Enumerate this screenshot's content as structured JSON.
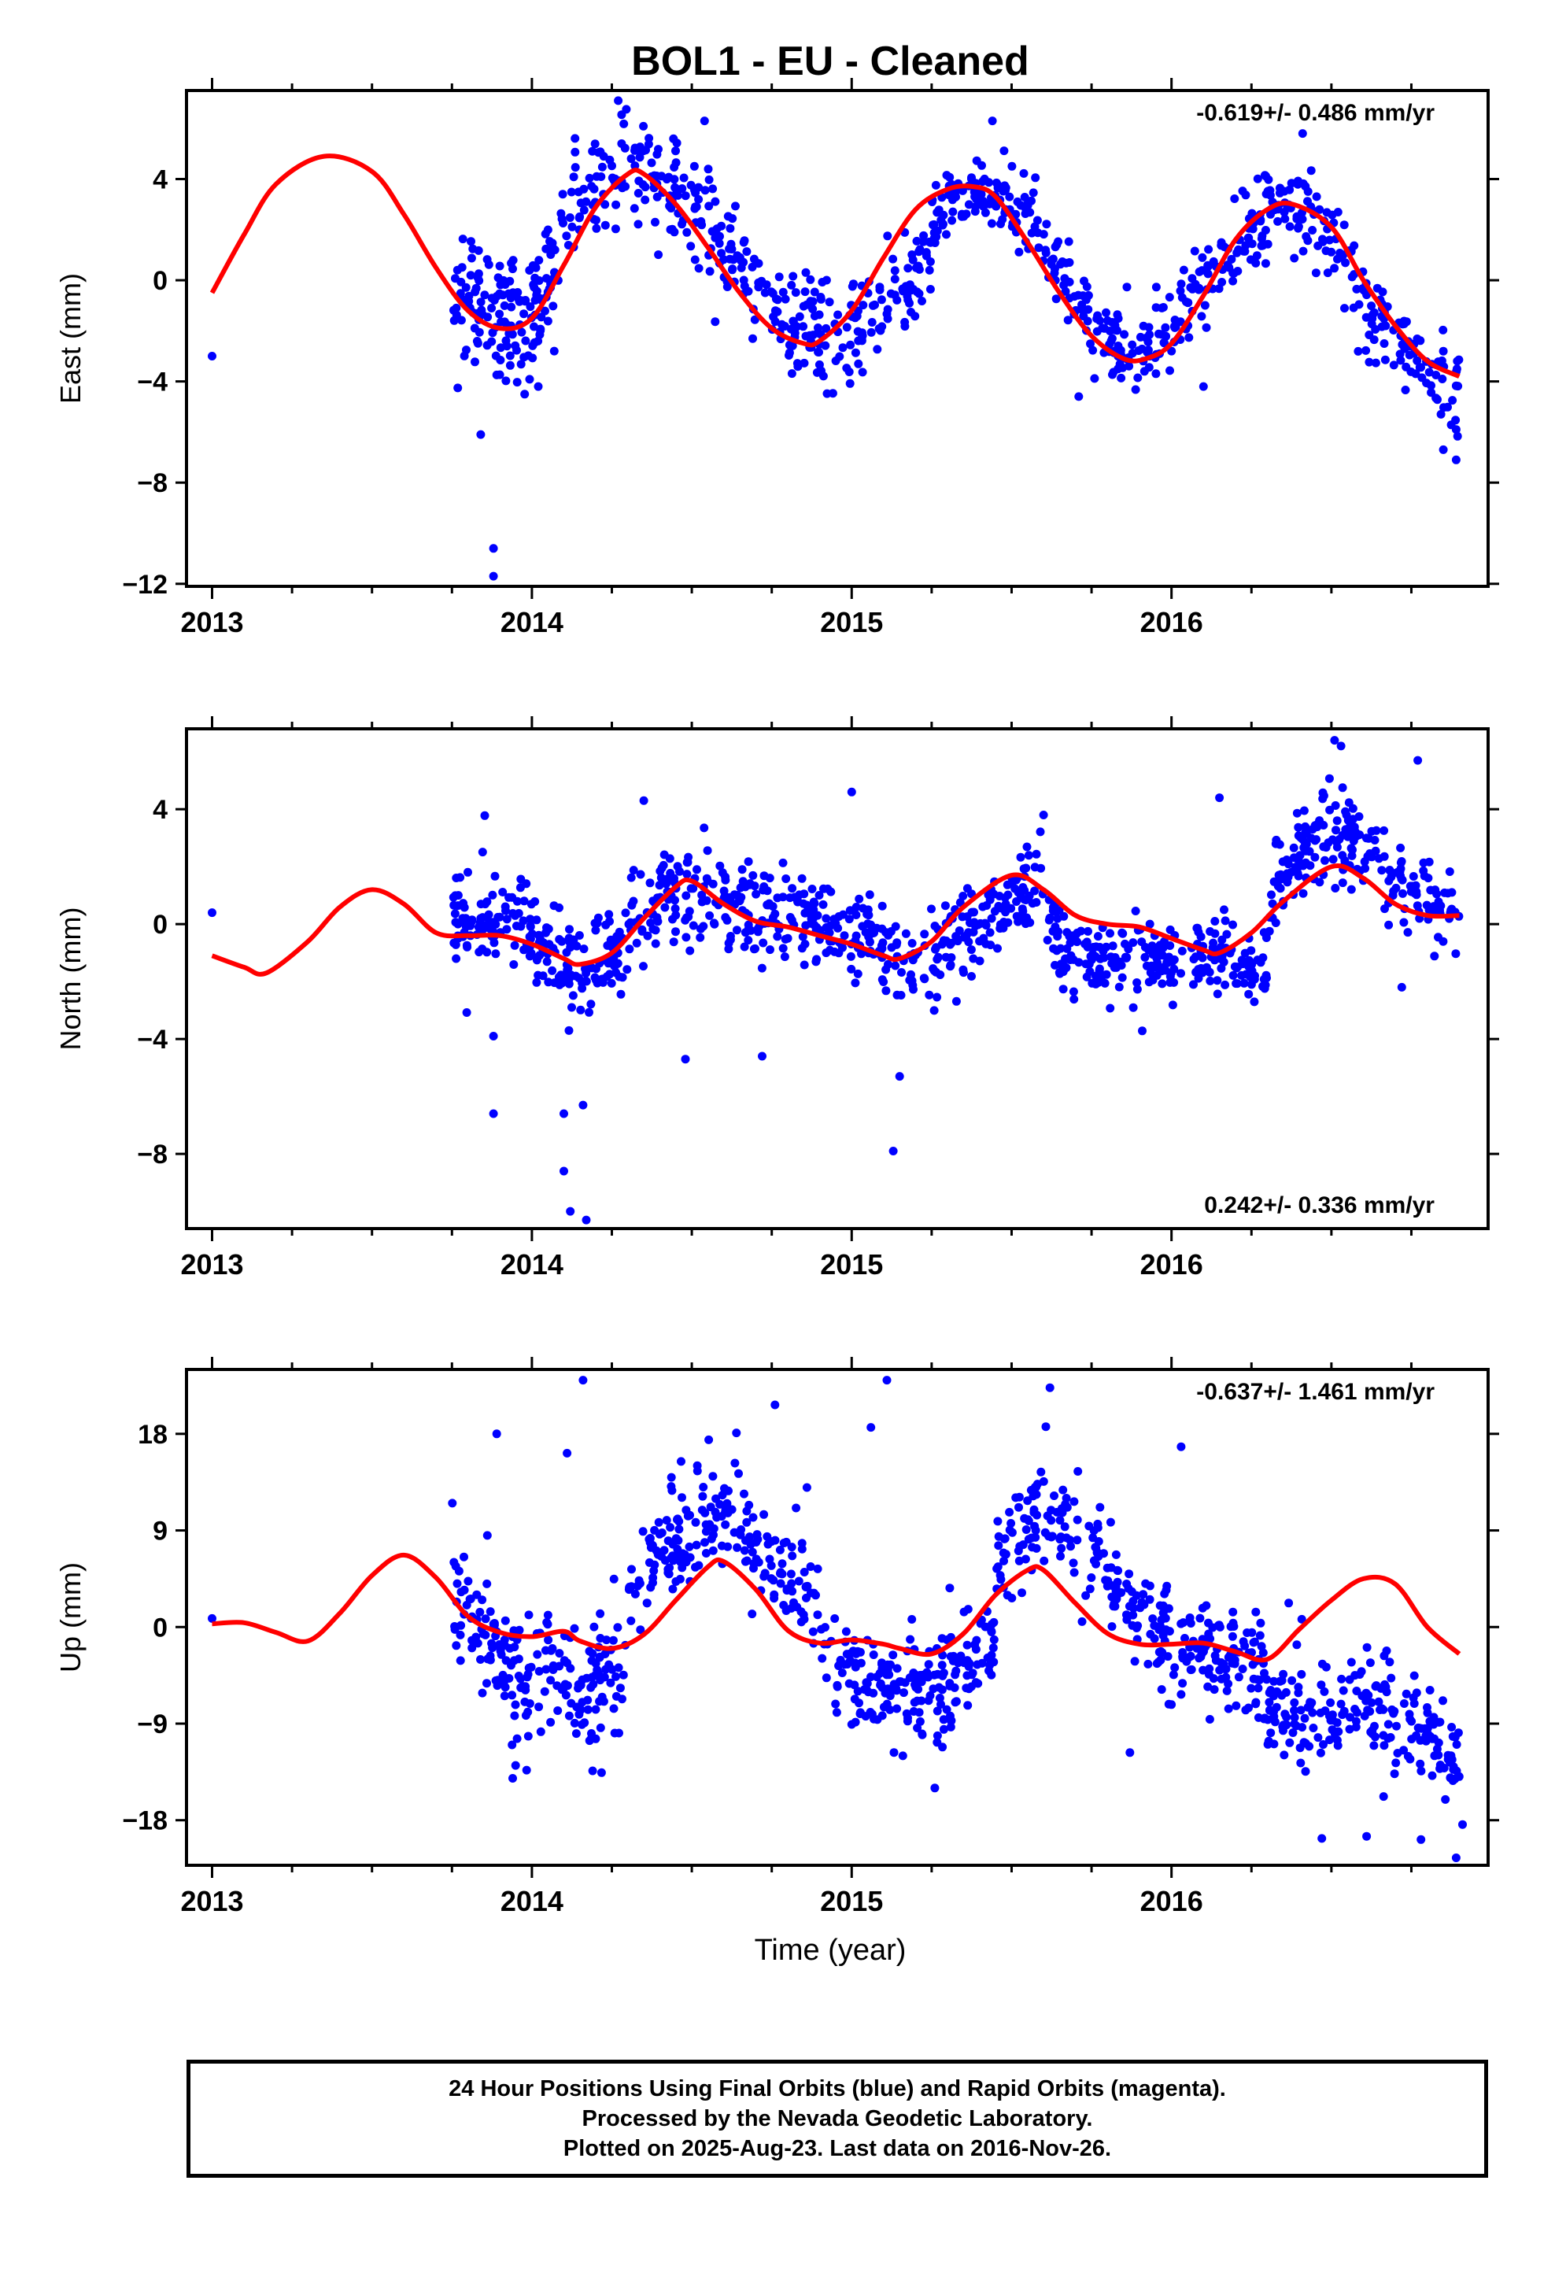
{
  "title": "BOL1  - EU - Cleaned",
  "xlabel": "Time (year)",
  "footer": {
    "line1": "24 Hour Positions Using Final Orbits (blue) and Rapid Orbits (magenta).",
    "line2": "Processed by the Nevada Geodetic Laboratory.",
    "line3": "Plotted on 2025-Aug-23. Last data on 2016-Nov-26."
  },
  "colors": {
    "points": "#0000ff",
    "model": "#ff0000",
    "axes": "#000000"
  },
  "chart_data": [
    {
      "type": "scatter",
      "component": "East",
      "ylabel": "East (mm)",
      "rate_text": "-0.619+/- 0.486 mm/yr",
      "rate_position": "top-right",
      "xlim": [
        2012.92,
        2016.99
      ],
      "ylim": [
        -12.1,
        7.5
      ],
      "xticks": [
        2013,
        2014,
        2015,
        2016
      ],
      "yticks": [
        4,
        0,
        -4,
        -8,
        -12
      ],
      "model_curve": {
        "x": [
          2013.0,
          2013.1,
          2013.2,
          2013.35,
          2013.5,
          2013.6,
          2013.7,
          2013.8,
          2013.9,
          2014.0,
          2014.1,
          2014.2,
          2014.3,
          2014.35,
          2014.45,
          2014.55,
          2014.65,
          2014.75,
          2014.85,
          2014.9,
          2015.0,
          2015.1,
          2015.2,
          2015.3,
          2015.38,
          2015.45,
          2015.55,
          2015.65,
          2015.75,
          2015.85,
          2015.92,
          2016.0,
          2016.1,
          2016.2,
          2016.3,
          2016.38,
          2016.5,
          2016.6,
          2016.7,
          2016.8,
          2016.9
        ],
        "y": [
          -0.5,
          1.8,
          3.8,
          4.9,
          4.3,
          2.6,
          0.5,
          -1.2,
          -1.9,
          -1.5,
          0.6,
          2.9,
          4.2,
          4.2,
          3.0,
          1.3,
          -0.5,
          -1.9,
          -2.5,
          -2.4,
          -1.2,
          0.9,
          2.8,
          3.6,
          3.7,
          3.3,
          1.5,
          -0.5,
          -2.2,
          -3.1,
          -3.1,
          -2.5,
          -0.6,
          1.6,
          2.8,
          3.0,
          2.1,
          0.0,
          -1.8,
          -3.2,
          -3.8
        ]
      },
      "series": [
        {
          "name": "",
          "segments": [
            {
              "x_range": [
                2013.75,
                2014.0
              ],
              "center": [
                -0.5,
                -1.9
              ],
              "spread": 1.8,
              "count": 110
            },
            {
              "x_range": [
                2014.0,
                2014.6
              ],
              "center": [
                -1.5,
                3.5,
                4.5,
                3.5,
                1.5
              ],
              "spread": 1.5,
              "count": 200
            },
            {
              "x_range": [
                2014.6,
                2015.25
              ],
              "center": [
                1.0,
                -1.0,
                -2.3,
                -1.3,
                1.5
              ],
              "spread": 1.3,
              "count": 200
            },
            {
              "x_range": [
                2015.25,
                2015.95
              ],
              "center": [
                2.5,
                3.6,
                2.8,
                0.0,
                -2.5,
                -3.1
              ],
              "spread": 1.0,
              "count": 220
            },
            {
              "x_range": [
                2015.95,
                2016.9
              ],
              "center": [
                -2.5,
                -0.5,
                1.8,
                3.0,
                1.5,
                -1.0,
                -3.2,
                -4.0
              ],
              "spread": 1.2,
              "count": 280
            }
          ],
          "outliers": [
            {
              "x": 2013.0,
              "y": -3.0
            },
            {
              "x": 2013.88,
              "y": -10.6
            },
            {
              "x": 2013.88,
              "y": -11.7
            },
            {
              "x": 2013.84,
              "y": -6.1
            },
            {
              "x": 2014.07,
              "y": -2.8
            },
            {
              "x": 2014.02,
              "y": -4.2
            },
            {
              "x": 2014.27,
              "y": 7.1
            },
            {
              "x": 2014.54,
              "y": 6.3
            },
            {
              "x": 2015.44,
              "y": 6.3
            },
            {
              "x": 2016.41,
              "y": 5.8
            },
            {
              "x": 2016.85,
              "y": -6.7
            },
            {
              "x": 2016.89,
              "y": -7.1
            },
            {
              "x": 2016.89,
              "y": -5.9
            },
            {
              "x": 2015.71,
              "y": -4.6
            },
            {
              "x": 2016.1,
              "y": -4.2
            }
          ]
        }
      ]
    },
    {
      "type": "scatter",
      "component": "North",
      "ylabel": "North (mm)",
      "rate_text": "0.242+/- 0.336 mm/yr",
      "rate_position": "bottom-right",
      "xlim": [
        2012.92,
        2016.99
      ],
      "ylim": [
        -10.6,
        6.8
      ],
      "xticks": [
        2013,
        2014,
        2015,
        2016
      ],
      "yticks": [
        4,
        0,
        -4,
        -8
      ],
      "model_curve": {
        "x": [
          2013.0,
          2013.1,
          2013.17,
          2013.3,
          2013.4,
          2013.5,
          2013.6,
          2013.7,
          2013.8,
          2013.9,
          2014.0,
          2014.1,
          2014.15,
          2014.25,
          2014.35,
          2014.45,
          2014.5,
          2014.6,
          2014.7,
          2014.8,
          2014.9,
          2015.0,
          2015.1,
          2015.15,
          2015.25,
          2015.35,
          2015.5,
          2015.6,
          2015.7,
          2015.8,
          2015.9,
          2016.0,
          2016.1,
          2016.15,
          2016.25,
          2016.35,
          2016.5,
          2016.6,
          2016.7,
          2016.8,
          2016.9
        ],
        "y": [
          -1.1,
          -1.5,
          -1.7,
          -0.6,
          0.6,
          1.2,
          0.7,
          -0.3,
          -0.4,
          -0.4,
          -0.7,
          -1.2,
          -1.4,
          -1.0,
          0.2,
          1.3,
          1.5,
          0.7,
          0.1,
          -0.1,
          -0.4,
          -0.7,
          -1.1,
          -1.2,
          -0.6,
          0.6,
          1.7,
          1.2,
          0.3,
          0.0,
          -0.1,
          -0.5,
          -0.9,
          -1.0,
          -0.3,
          0.8,
          2.0,
          1.6,
          0.7,
          0.3,
          0.3
        ]
      },
      "series": [
        {
          "name": "",
          "segments": [
            {
              "x_range": [
                2013.75,
                2014.0
              ],
              "center": [
                0.3,
                -0.3
              ],
              "spread": 1.1,
              "count": 100
            },
            {
              "x_range": [
                2014.0,
                2014.3
              ],
              "center": [
                -0.7,
                -1.8,
                -0.8
              ],
              "spread": 1.0,
              "count": 110
            },
            {
              "x_range": [
                2014.3,
                2015.0
              ],
              "center": [
                0.2,
                1.2,
                0.8,
                0.5,
                0.3,
                -0.2
              ],
              "spread": 1.1,
              "count": 240
            },
            {
              "x_range": [
                2015.0,
                2015.6
              ],
              "center": [
                -0.6,
                -1.3,
                0.0,
                1.6
              ],
              "spread": 1.0,
              "count": 200
            },
            {
              "x_range": [
                2015.6,
                2016.3
              ],
              "center": [
                -0.5,
                -1.2,
                -1.2,
                -1.0,
                -1.4
              ],
              "spread": 0.9,
              "count": 240
            },
            {
              "x_range": [
                2016.3,
                2016.9
              ],
              "center": [
                0.8,
                3.2,
                2.8,
                1.2,
                0.3
              ],
              "spread": 1.0,
              "count": 200
            }
          ],
          "outliers": [
            {
              "x": 2013.0,
              "y": 0.4
            },
            {
              "x": 2013.88,
              "y": -6.6
            },
            {
              "x": 2013.88,
              "y": -3.9
            },
            {
              "x": 2014.1,
              "y": -8.6
            },
            {
              "x": 2014.1,
              "y": -6.6
            },
            {
              "x": 2014.12,
              "y": -10.0
            },
            {
              "x": 2014.16,
              "y": -6.3
            },
            {
              "x": 2014.17,
              "y": -10.3
            },
            {
              "x": 2014.48,
              "y": -4.7
            },
            {
              "x": 2014.72,
              "y": -4.6
            },
            {
              "x": 2015.0,
              "y": 4.6
            },
            {
              "x": 2015.13,
              "y": -7.9
            },
            {
              "x": 2015.15,
              "y": -5.3
            },
            {
              "x": 2014.35,
              "y": 4.3
            },
            {
              "x": 2016.15,
              "y": 4.4
            },
            {
              "x": 2016.51,
              "y": 6.4
            },
            {
              "x": 2016.53,
              "y": 6.2
            },
            {
              "x": 2016.77,
              "y": 5.7
            },
            {
              "x": 2016.72,
              "y": -2.2
            },
            {
              "x": 2015.6,
              "y": 3.8
            }
          ]
        }
      ]
    },
    {
      "type": "scatter",
      "component": "Up",
      "ylabel": "Up (mm)",
      "rate_text": "-0.637+/- 1.461 mm/yr",
      "rate_position": "top-right",
      "xlim": [
        2012.92,
        2016.99
      ],
      "ylim": [
        -22.2,
        24.0
      ],
      "xticks": [
        2013,
        2014,
        2015,
        2016
      ],
      "yticks": [
        18,
        9,
        0,
        -9,
        -18
      ],
      "model_curve": {
        "x": [
          2013.0,
          2013.1,
          2013.2,
          2013.3,
          2013.4,
          2013.5,
          2013.6,
          2013.7,
          2013.8,
          2013.9,
          2014.0,
          2014.1,
          2014.15,
          2014.25,
          2014.35,
          2014.45,
          2014.55,
          2014.6,
          2014.7,
          2014.8,
          2014.9,
          2015.0,
          2015.1,
          2015.15,
          2015.25,
          2015.35,
          2015.45,
          2015.55,
          2015.6,
          2015.7,
          2015.8,
          2015.9,
          2016.0,
          2016.1,
          2016.2,
          2016.3,
          2016.4,
          2016.5,
          2016.6,
          2016.7,
          2016.8,
          2016.9
        ],
        "y": [
          0.3,
          0.4,
          -0.5,
          -1.3,
          1.3,
          4.8,
          6.7,
          4.6,
          1.0,
          -0.5,
          -0.9,
          -0.4,
          -1.3,
          -2.0,
          -0.7,
          2.5,
          5.6,
          6.1,
          3.5,
          -0.3,
          -1.5,
          -1.2,
          -1.6,
          -2.0,
          -2.5,
          -0.6,
          3.0,
          5.3,
          5.3,
          2.2,
          -0.6,
          -1.6,
          -1.6,
          -1.5,
          -2.3,
          -3.0,
          -0.2,
          2.5,
          4.5,
          4.0,
          0.0,
          -2.5
        ]
      },
      "series": [
        {
          "name": "",
          "segments": [
            {
              "x_range": [
                2013.75,
                2014.0
              ],
              "center": [
                4.0,
                -2.0,
                -5.5
              ],
              "spread": 4.0,
              "count": 100
            },
            {
              "x_range": [
                2014.0,
                2014.3
              ],
              "center": [
                -2.5,
                -5.5,
                -3.0
              ],
              "spread": 4.0,
              "count": 100
            },
            {
              "x_range": [
                2014.3,
                2014.9
              ],
              "center": [
                2.0,
                8.0,
                11.0,
                6.0,
                1.0
              ],
              "spread": 3.5,
              "count": 200
            },
            {
              "x_range": [
                2014.9,
                2015.45
              ],
              "center": [
                -2.5,
                -6.0,
                -6.0,
                -1.0
              ],
              "spread": 3.5,
              "count": 200
            },
            {
              "x_range": [
                2015.45,
                2016.0
              ],
              "center": [
                5.0,
                11.0,
                8.0,
                2.0,
                -1.5
              ],
              "spread": 3.2,
              "count": 180
            },
            {
              "x_range": [
                2016.0,
                2016.3
              ],
              "center": [
                -1.5,
                -2.5,
                -4.0
              ],
              "spread": 3.0,
              "count": 110
            },
            {
              "x_range": [
                2016.3,
                2016.9
              ],
              "center": [
                -8.0,
                -8.0,
                -7.0,
                -9.0,
                -12.0
              ],
              "spread": 3.2,
              "count": 210
            }
          ],
          "outliers": [
            {
              "x": 2013.0,
              "y": 0.8
            },
            {
              "x": 2013.89,
              "y": 18.0
            },
            {
              "x": 2013.94,
              "y": -14.1
            },
            {
              "x": 2014.11,
              "y": 16.2
            },
            {
              "x": 2014.16,
              "y": 23.0
            },
            {
              "x": 2014.19,
              "y": -13.4
            },
            {
              "x": 2014.76,
              "y": 20.7
            },
            {
              "x": 2014.86,
              "y": 13.0
            },
            {
              "x": 2015.06,
              "y": 18.6
            },
            {
              "x": 2015.11,
              "y": 23.0
            },
            {
              "x": 2015.26,
              "y": -15.0
            },
            {
              "x": 2015.62,
              "y": 22.3
            },
            {
              "x": 2015.87,
              "y": -11.7
            },
            {
              "x": 2016.03,
              "y": 16.8
            },
            {
              "x": 2016.12,
              "y": -8.6
            },
            {
              "x": 2016.47,
              "y": -19.7
            },
            {
              "x": 2016.61,
              "y": -19.5
            },
            {
              "x": 2016.78,
              "y": -19.8
            },
            {
              "x": 2016.89,
              "y": -21.5
            },
            {
              "x": 2016.91,
              "y": -18.4
            }
          ]
        }
      ]
    }
  ]
}
